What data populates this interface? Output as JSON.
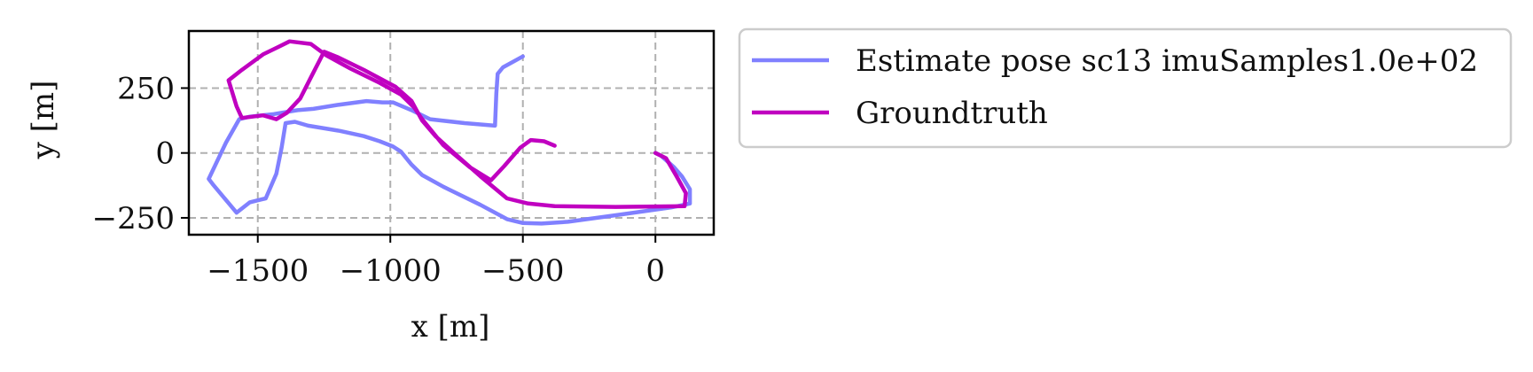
{
  "chart_data": {
    "type": "line",
    "title": "",
    "xlabel": "x [m]",
    "ylabel": "y [m]",
    "xlim": [
      -1760,
      220
    ],
    "ylim": [
      -315,
      470
    ],
    "xticks": [
      -1500,
      -1000,
      -500,
      0
    ],
    "xtick_labels": [
      "−1500",
      "−1000",
      "−500",
      "0"
    ],
    "yticks": [
      -250,
      0,
      250
    ],
    "ytick_labels": [
      "−250",
      "0",
      "250"
    ],
    "grid": true,
    "grid_style": "dashed",
    "legend_position": "outside-right-top",
    "series": [
      {
        "name": "Estimate pose sc13 imuSamples1.0e+02",
        "color": "#8080ff",
        "points": [
          [
            -500,
            372
          ],
          [
            -575,
            330
          ],
          [
            -595,
            305
          ],
          [
            -600,
            230
          ],
          [
            -605,
            105
          ],
          [
            -720,
            115
          ],
          [
            -850,
            130
          ],
          [
            -920,
            165
          ],
          [
            -990,
            195
          ],
          [
            -1030,
            195
          ],
          [
            -1090,
            200
          ],
          [
            -1200,
            185
          ],
          [
            -1290,
            170
          ],
          [
            -1350,
            165
          ],
          [
            -1440,
            150
          ],
          [
            -1530,
            140
          ],
          [
            -1570,
            130
          ],
          [
            -1620,
            40
          ],
          [
            -1685,
            -100
          ],
          [
            -1670,
            -120
          ],
          [
            -1580,
            -230
          ],
          [
            -1530,
            -190
          ],
          [
            -1490,
            -180
          ],
          [
            -1470,
            -175
          ],
          [
            -1430,
            -80
          ],
          [
            -1410,
            20
          ],
          [
            -1395,
            115
          ],
          [
            -1360,
            120
          ],
          [
            -1310,
            105
          ],
          [
            -1190,
            85
          ],
          [
            -1100,
            65
          ],
          [
            -1040,
            45
          ],
          [
            -990,
            25
          ],
          [
            -960,
            5
          ],
          [
            -920,
            -45
          ],
          [
            -880,
            -85
          ],
          [
            -800,
            -130
          ],
          [
            -660,
            -200
          ],
          [
            -560,
            -255
          ],
          [
            -500,
            -270
          ],
          [
            -430,
            -272
          ],
          [
            -330,
            -265
          ],
          [
            -150,
            -240
          ],
          [
            60,
            -210
          ],
          [
            130,
            -195
          ],
          [
            130,
            -140
          ],
          [
            100,
            -90
          ],
          [
            70,
            -55
          ],
          [
            20,
            -10
          ],
          [
            0,
            0
          ]
        ]
      },
      {
        "name": "Groundtruth",
        "color": "#c000c0",
        "points": [
          [
            -380,
            28
          ],
          [
            -420,
            45
          ],
          [
            -470,
            50
          ],
          [
            -510,
            20
          ],
          [
            -570,
            -50
          ],
          [
            -620,
            -105
          ],
          [
            -700,
            -55
          ],
          [
            -800,
            30
          ],
          [
            -880,
            130
          ],
          [
            -910,
            175
          ],
          [
            -960,
            225
          ],
          [
            -1040,
            270
          ],
          [
            -1150,
            325
          ],
          [
            -1240,
            375
          ],
          [
            -1300,
            420
          ],
          [
            -1380,
            430
          ],
          [
            -1420,
            410
          ],
          [
            -1480,
            380
          ],
          [
            -1560,
            320
          ],
          [
            -1610,
            280
          ],
          [
            -1580,
            180
          ],
          [
            -1560,
            135
          ],
          [
            -1480,
            145
          ],
          [
            -1430,
            130
          ],
          [
            -1390,
            155
          ],
          [
            -1340,
            210
          ],
          [
            -1300,
            290
          ],
          [
            -1250,
            390
          ],
          [
            -1200,
            370
          ],
          [
            -1100,
            320
          ],
          [
            -980,
            255
          ],
          [
            -920,
            200
          ],
          [
            -880,
            125
          ],
          [
            -830,
            65
          ],
          [
            -760,
            0
          ],
          [
            -660,
            -90
          ],
          [
            -560,
            -175
          ],
          [
            -480,
            -195
          ],
          [
            -380,
            -205
          ],
          [
            -150,
            -208
          ],
          [
            110,
            -205
          ],
          [
            115,
            -155
          ],
          [
            80,
            -90
          ],
          [
            40,
            -20
          ],
          [
            0,
            0
          ]
        ]
      }
    ]
  }
}
